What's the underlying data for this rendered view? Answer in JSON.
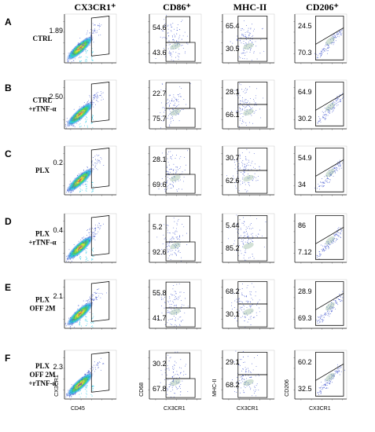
{
  "columns": [
    "CX3CR1⁺",
    "CD86⁺",
    "MHC-II",
    "CD206⁺"
  ],
  "column_x_axis": [
    "CD45",
    "CX3CR1",
    "CX3CR1",
    "CX3CR1"
  ],
  "column_y_axis": [
    "CX3CR1",
    "CD68",
    "MHC-II",
    "CD206"
  ],
  "rows": [
    {
      "letter": "A",
      "label": [
        "CTRL"
      ],
      "values": [
        [
          "1.89"
        ],
        [
          "54.6",
          "43.6"
        ],
        [
          "65.4",
          "30.5"
        ],
        [
          "24.5",
          "70.3"
        ]
      ]
    },
    {
      "letter": "B",
      "label": [
        "CTRL",
        "+rTNF-α"
      ],
      "values": [
        [
          "2.50"
        ],
        [
          "22.7",
          "75.7"
        ],
        [
          "28.1",
          "66.1"
        ],
        [
          "64.9",
          "30.2"
        ]
      ]
    },
    {
      "letter": "C",
      "label": [
        "PLX"
      ],
      "values": [
        [
          "0.2"
        ],
        [
          "28.1",
          "69.6"
        ],
        [
          "30.7",
          "62.6"
        ],
        [
          "54.9",
          "34"
        ]
      ]
    },
    {
      "letter": "D",
      "label": [
        "PLX",
        "+rTNF-α"
      ],
      "values": [
        [
          "0.4"
        ],
        [
          "5.2",
          "92.6"
        ],
        [
          "5.44",
          "85.2"
        ],
        [
          "86",
          "7.12"
        ]
      ]
    },
    {
      "letter": "E",
      "label": [
        "PLX",
        "OFF 2M"
      ],
      "values": [
        [
          "2.1"
        ],
        [
          "55.8",
          "41.7"
        ],
        [
          "68.2",
          "30.1"
        ],
        [
          "28.9",
          "69.3"
        ]
      ]
    },
    {
      "letter": "F",
      "label": [
        "PLX",
        "OFF 2M",
        "+rTNF-α"
      ],
      "values": [
        [
          "2.3"
        ],
        [
          "30.2",
          "67.8"
        ],
        [
          "29.1",
          "68.2"
        ],
        [
          "60.2",
          "32.5"
        ]
      ]
    }
  ],
  "colors": {
    "density_low": "#2b3fd6",
    "density_mid1": "#27c9e6",
    "density_mid2": "#55d24a",
    "density_mid3": "#f2e832",
    "density_high": "#ee3a1f",
    "scatter_dot": "#4a5ed0",
    "gate": "#111111"
  }
}
